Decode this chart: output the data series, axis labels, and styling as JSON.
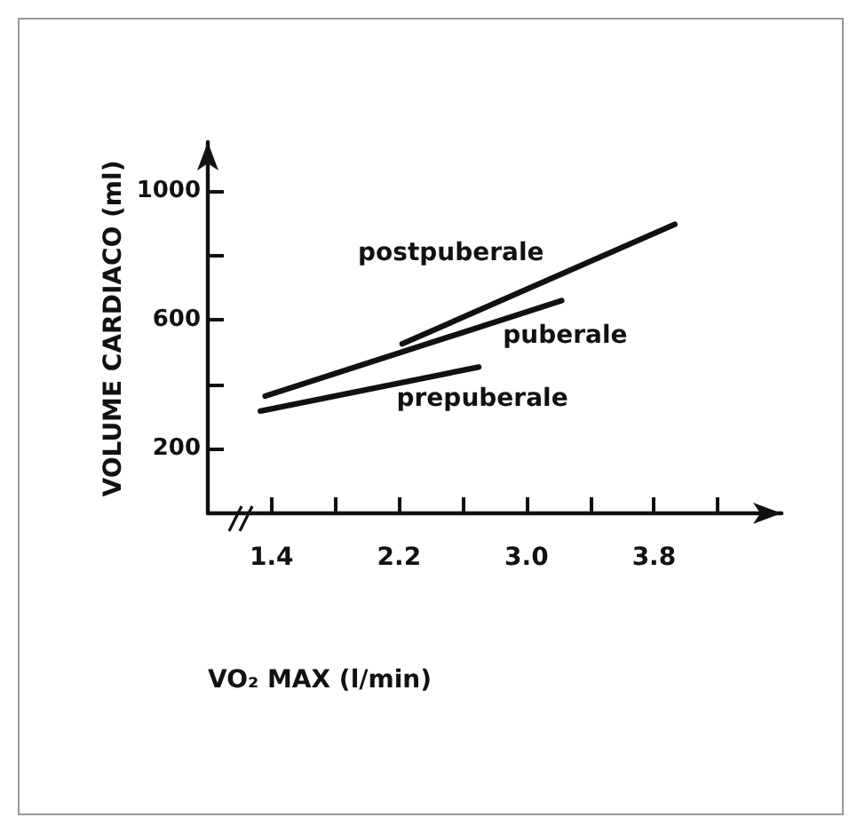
{
  "chart_data": {
    "type": "line",
    "xlabel": "VO₂ MAX (l/min)",
    "ylabel": "VOLUME CARDIACO (ml)",
    "xlim": [
      1.0,
      4.6
    ],
    "xticks": [
      1.4,
      {
        "value": 1.8,
        "label": null
      },
      2.2,
      {
        "value": 2.6,
        "label": null
      },
      {
        "value": 3.0,
        "label": "3.0"
      },
      {
        "value": 3.4,
        "label": null
      },
      3.8,
      {
        "value": 4.2,
        "label": null
      }
    ],
    "ylim": [
      0,
      1150
    ],
    "yticks": [
      200,
      {
        "value": 400,
        "label": null
      },
      600,
      {
        "value": 800,
        "label": null
      },
      1000
    ],
    "grid": false,
    "legend": false,
    "marker": "none",
    "line_style": "solid",
    "series": [
      {
        "name": "postpuberale",
        "color": "#111111",
        "x": [
          2.22,
          3.93
        ],
        "values": [
          525,
          895
        ]
      },
      {
        "name": "puberale",
        "color": "#111111",
        "x": [
          1.36,
          3.22
        ],
        "values": [
          363,
          659
        ]
      },
      {
        "name": "prepuberale",
        "color": "#111111",
        "x": [
          1.33,
          2.7
        ],
        "values": [
          317,
          453
        ]
      }
    ]
  }
}
